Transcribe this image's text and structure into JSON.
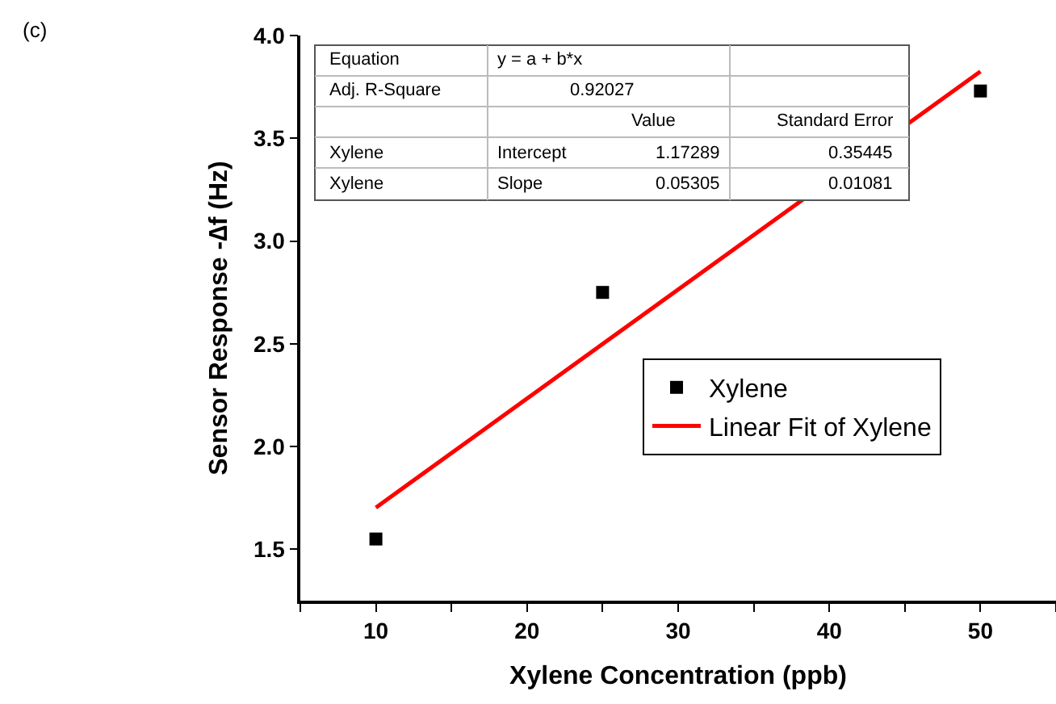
{
  "chart_data": {
    "type": "scatter",
    "xlabel": "Xylene Concentration (ppb)",
    "ylabel": "Sensor Response -∆f (Hz)",
    "annotations": [
      "(c)",
      "Equation",
      "y = a + b*x",
      "Adj. R-Square",
      "0.92027",
      "Value",
      "Standard Error",
      "Xylene",
      "Intercept",
      "1.17289",
      "0.35445",
      "Xylene",
      "Slope",
      "0.05305",
      "0.01081"
    ],
    "x": [
      10,
      25,
      50
    ],
    "series": [
      {
        "name": "Xylene",
        "color": "#000000",
        "values": [
          1.55,
          2.75,
          3.73
        ],
        "marker": "square"
      },
      {
        "name": "Linear Fit of Xylene",
        "type": "line",
        "color": "#ff0000",
        "x": [
          10,
          50
        ],
        "values": [
          1.703,
          3.825
        ],
        "marker": "none",
        "line_style": "solid"
      }
    ],
    "xlim": [
      5,
      55
    ],
    "xticks": [
      {
        "value": 5,
        "label": null
      },
      10,
      {
        "value": 15,
        "label": null
      },
      20,
      {
        "value": 25,
        "label": null
      },
      30,
      {
        "value": 35,
        "label": null
      },
      40,
      {
        "value": 45,
        "label": null
      },
      50,
      {
        "value": 55,
        "label": null
      }
    ],
    "ylim": [
      1.25,
      4.0
    ],
    "yticks": [
      1.5,
      {
        "value": 2,
        "label": "2.0"
      },
      2.5,
      {
        "value": 3,
        "label": "3.0"
      },
      3.5,
      {
        "value": 4,
        "label": "4.0"
      }
    ],
    "legend": "right"
  }
}
